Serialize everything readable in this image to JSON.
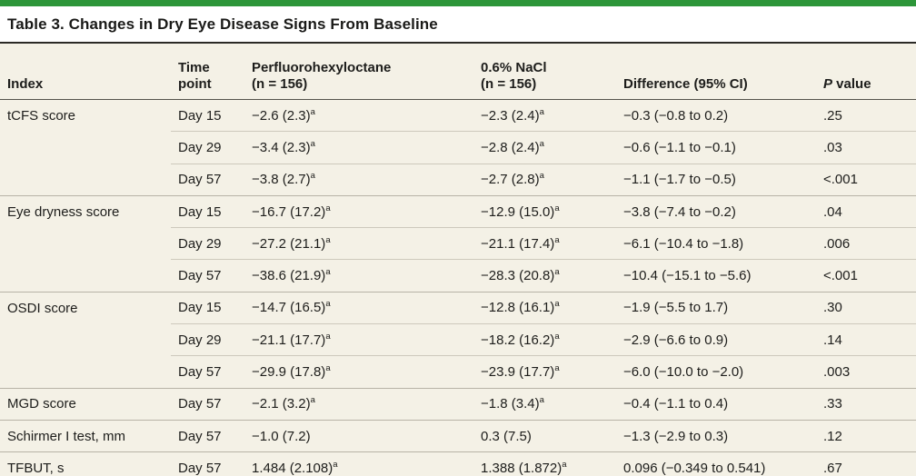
{
  "accent_color": "#2d9639",
  "table": {
    "title": "Table 3. Changes in Dry Eye Disease Signs From Baseline",
    "columns": {
      "index": "Index",
      "time": "Time point",
      "drug": "Perfluorohexyloctane",
      "drug_n": "(n = 156)",
      "control": "0.6% NaCl",
      "control_n": "(n = 156)",
      "diff": "Difference (95% CI)",
      "p_italic": "P",
      "p_rest": " value"
    },
    "rows": [
      {
        "index": "tCFS score",
        "time": "Day 15",
        "drug": "−2.6 (2.3)",
        "drug_sup": "a",
        "control": "−2.3 (2.4)",
        "control_sup": "a",
        "diff": "−0.3 (−0.8 to 0.2)",
        "p": ".25",
        "group_start": true
      },
      {
        "index": "",
        "time": "Day 29",
        "drug": "−3.4 (2.3)",
        "drug_sup": "a",
        "control": "−2.8 (2.4)",
        "control_sup": "a",
        "diff": "−0.6 (−1.1 to −0.1)",
        "p": ".03",
        "group_start": false
      },
      {
        "index": "",
        "time": "Day 57",
        "drug": "−3.8 (2.7)",
        "drug_sup": "a",
        "control": "−2.7 (2.8)",
        "control_sup": "a",
        "diff": "−1.1 (−1.7 to −0.5)",
        "p": "<.001",
        "group_start": false
      },
      {
        "index": "Eye dryness score",
        "time": "Day 15",
        "drug": "−16.7 (17.2)",
        "drug_sup": "a",
        "control": "−12.9 (15.0)",
        "control_sup": "a",
        "diff": "−3.8 (−7.4 to −0.2)",
        "p": ".04",
        "group_start": true
      },
      {
        "index": "",
        "time": "Day 29",
        "drug": "−27.2 (21.1)",
        "drug_sup": "a",
        "control": "−21.1 (17.4)",
        "control_sup": "a",
        "diff": "−6.1 (−10.4 to −1.8)",
        "p": ".006",
        "group_start": false
      },
      {
        "index": "",
        "time": "Day 57",
        "drug": "−38.6 (21.9)",
        "drug_sup": "a",
        "control": "−28.3 (20.8)",
        "control_sup": "a",
        "diff": "−10.4 (−15.1 to −5.6)",
        "p": "<.001",
        "group_start": false
      },
      {
        "index": "OSDI score",
        "time": "Day 15",
        "drug": "−14.7 (16.5)",
        "drug_sup": "a",
        "control": "−12.8 (16.1)",
        "control_sup": "a",
        "diff": "−1.9 (−5.5 to 1.7)",
        "p": ".30",
        "group_start": true
      },
      {
        "index": "",
        "time": "Day 29",
        "drug": "−21.1 (17.7)",
        "drug_sup": "a",
        "control": "−18.2 (16.2)",
        "control_sup": "a",
        "diff": "−2.9 (−6.6 to 0.9)",
        "p": ".14",
        "group_start": false
      },
      {
        "index": "",
        "time": "Day 57",
        "drug": "−29.9 (17.8)",
        "drug_sup": "a",
        "control": "−23.9 (17.7)",
        "control_sup": "a",
        "diff": "−6.0 (−10.0 to −2.0)",
        "p": ".003",
        "group_start": false
      },
      {
        "index": "MGD score",
        "time": "Day 57",
        "drug": "−2.1 (3.2)",
        "drug_sup": "a",
        "control": "−1.8 (3.4)",
        "control_sup": "a",
        "diff": "−0.4 (−1.1 to 0.4)",
        "p": ".33",
        "group_start": true
      },
      {
        "index": "Schirmer I test, mm",
        "time": "Day 57",
        "drug": "−1.0 (7.2)",
        "drug_sup": "",
        "control": "0.3 (7.5)",
        "control_sup": "",
        "diff": "−1.3 (−2.9 to 0.3)",
        "p": ".12",
        "group_start": true
      },
      {
        "index": "TFBUT, s",
        "time": "Day 57",
        "drug": "1.484 (2.108)",
        "drug_sup": "a",
        "control": "1.388 (1.872)",
        "control_sup": "a",
        "diff": "0.096 (−0.349 to 0.541)",
        "p": ".67",
        "group_start": true
      }
    ]
  }
}
